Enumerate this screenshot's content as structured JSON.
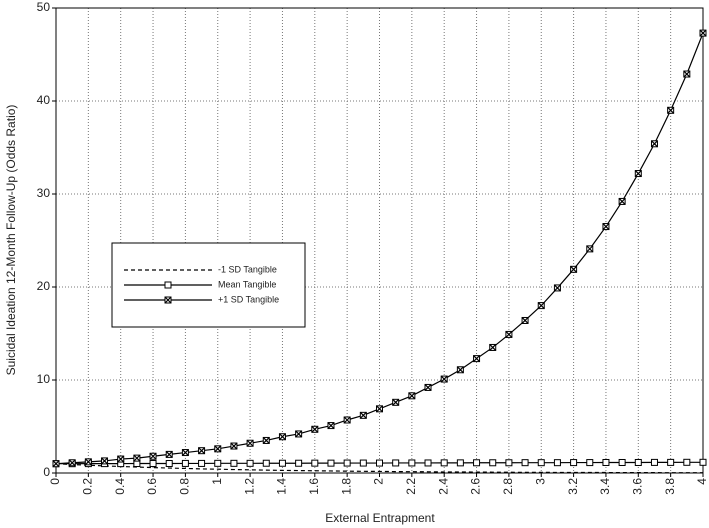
{
  "chart_data": {
    "type": "line",
    "xlabel": "External Entrapment",
    "ylabel": "Suicidal Ideation 12-Month Follow-Up (Odds Ratio)",
    "x": [
      0,
      0.1,
      0.2,
      0.3,
      0.4,
      0.5,
      0.6,
      0.7,
      0.8,
      0.9,
      1,
      1.1,
      1.2,
      1.3,
      1.4,
      1.5,
      1.6,
      1.7,
      1.8,
      1.9,
      2,
      2.1,
      2.2,
      2.3,
      2.4,
      2.5,
      2.6,
      2.7,
      2.8,
      2.9,
      3,
      3.1,
      3.2,
      3.3,
      3.4,
      3.5,
      3.6,
      3.7,
      3.8,
      3.9,
      4
    ],
    "series": [
      {
        "name": "-1 SD Tangible",
        "color": "#000000",
        "linestyle": "dashed",
        "marker": "none",
        "values": [
          1,
          0.91,
          0.84,
          0.76,
          0.7,
          0.64,
          0.58,
          0.53,
          0.49,
          0.44,
          0.41,
          0.37,
          0.34,
          0.31,
          0.28,
          0.26,
          0.24,
          0.22,
          0.2,
          0.18,
          0.17,
          0.15,
          0.14,
          0.13,
          0.11,
          0.11,
          0.1,
          0.09,
          0.08,
          0.07,
          0.07,
          0.06,
          0.06,
          0.05,
          0.05,
          0.04,
          0.04,
          0.04,
          0.03,
          0.03,
          0.03
        ]
      },
      {
        "name": "Mean Tangible",
        "color": "#000000",
        "linestyle": "solid",
        "marker": "square",
        "values": [
          1.0,
          1.0,
          1.01,
          1.01,
          1.01,
          1.02,
          1.02,
          1.02,
          1.03,
          1.03,
          1.04,
          1.04,
          1.04,
          1.05,
          1.05,
          1.05,
          1.06,
          1.06,
          1.07,
          1.07,
          1.07,
          1.08,
          1.08,
          1.08,
          1.09,
          1.09,
          1.1,
          1.1,
          1.1,
          1.11,
          1.11,
          1.11,
          1.12,
          1.12,
          1.13,
          1.13,
          1.13,
          1.14,
          1.14,
          1.15,
          1.15
        ]
      },
      {
        "name": "+1 SD Tangible",
        "color": "#000000",
        "linestyle": "solid",
        "marker": "crossed-square",
        "values": [
          1.0,
          1.1,
          1.2,
          1.3,
          1.5,
          1.6,
          1.8,
          2.0,
          2.2,
          2.4,
          2.6,
          2.9,
          3.2,
          3.5,
          3.9,
          4.2,
          4.7,
          5.1,
          5.7,
          6.2,
          6.9,
          7.6,
          8.3,
          9.2,
          10.1,
          11.1,
          12.3,
          13.5,
          14.9,
          16.4,
          18.0,
          19.9,
          21.9,
          24.1,
          26.5,
          29.2,
          32.2,
          35.4,
          39.0,
          42.9,
          47.3
        ]
      }
    ],
    "xlim": [
      0,
      4
    ],
    "ylim": [
      0,
      50
    ],
    "xticks": [
      0,
      0.2,
      0.4,
      0.6,
      0.8,
      1,
      1.2,
      1.4,
      1.6,
      1.8,
      2,
      2.2,
      2.4,
      2.6,
      2.8,
      3,
      3.2,
      3.4,
      3.6,
      3.8,
      4
    ],
    "yticks": [
      0,
      10,
      20,
      30,
      40,
      50
    ],
    "grid": true
  }
}
